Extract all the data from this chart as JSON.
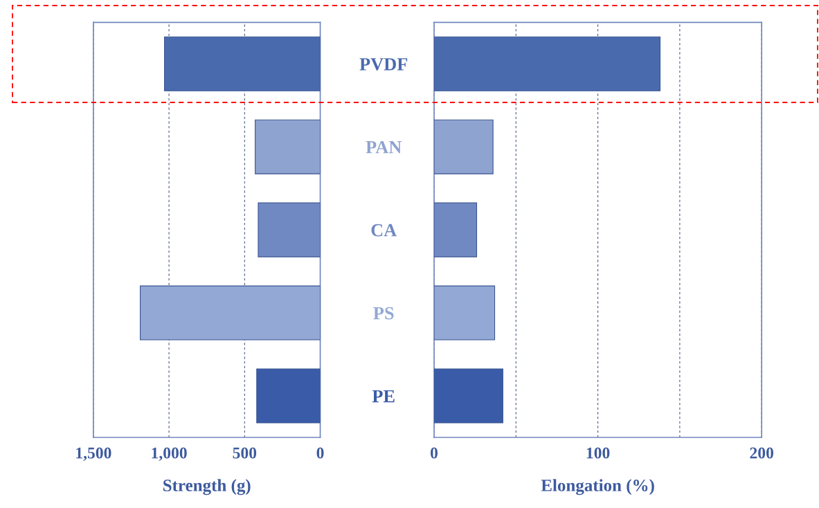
{
  "chart_data": [
    {
      "type": "bar",
      "orientation": "horizontal",
      "xlabel": "Strength (g)",
      "categories": [
        "PVDF",
        "PAN",
        "CA",
        "PS",
        "PE"
      ],
      "values": [
        1030,
        430,
        410,
        1190,
        420
      ],
      "colors": [
        "#4a6aae",
        "#8fa3d0",
        "#7089c3",
        "#93a8d4",
        "#3a5ca8"
      ],
      "xlim": [
        1500,
        0
      ],
      "xticks": [
        {
          "value": 1500,
          "label": "1,500"
        },
        {
          "value": 1000,
          "label": "1,000"
        },
        500,
        0
      ],
      "grid": "x"
    },
    {
      "type": "bar",
      "orientation": "horizontal",
      "xlabel": "Elongation (%)",
      "categories": [
        null,
        null,
        null,
        null,
        null
      ],
      "values": [
        138,
        36,
        26,
        37,
        42
      ],
      "colors": [
        "#4a6aae",
        "#8fa3d0",
        "#7089c3",
        "#93a8d4",
        "#3a5ca8"
      ],
      "xlim": [
        0,
        200
      ],
      "xticks": [
        0,
        {
          "value": 50,
          "label": null
        },
        100,
        {
          "value": 150,
          "label": null
        },
        200
      ],
      "grid": "x",
      "tick_labels": "x"
    }
  ]
}
